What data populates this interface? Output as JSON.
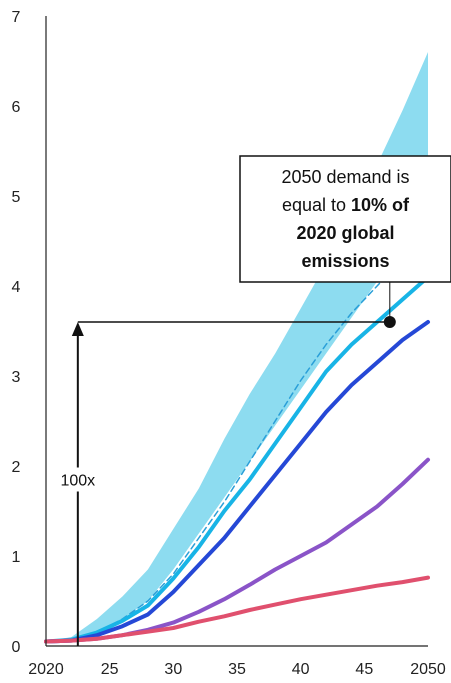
{
  "chart_data": {
    "type": "line",
    "x_range": [
      2020,
      2050
    ],
    "ylim": [
      0,
      7
    ],
    "y_ticks": [
      {
        "value": 0,
        "label": "0"
      },
      {
        "value": 1,
        "label": "1"
      },
      {
        "value": 2,
        "label": "2"
      },
      {
        "value": 3,
        "label": "3"
      },
      {
        "value": 4,
        "label": "4"
      },
      {
        "value": 5,
        "label": "5"
      },
      {
        "value": 6,
        "label": "6"
      },
      {
        "value": 7,
        "label": "7"
      }
    ],
    "x_ticks": [
      {
        "value": 2020,
        "label": "2020"
      },
      {
        "value": 2025,
        "label": "25"
      },
      {
        "value": 2030,
        "label": "30"
      },
      {
        "value": 2035,
        "label": "35"
      },
      {
        "value": 2040,
        "label": "40"
      },
      {
        "value": 2045,
        "label": "45"
      },
      {
        "value": 2050,
        "label": "2050"
      }
    ],
    "band": {
      "color": "#8ddcf0",
      "upper": [
        [
          2020,
          0.05
        ],
        [
          2022,
          0.1
        ],
        [
          2024,
          0.3
        ],
        [
          2026,
          0.55
        ],
        [
          2028,
          0.85
        ],
        [
          2030,
          1.3
        ],
        [
          2032,
          1.75
        ],
        [
          2034,
          2.3
        ],
        [
          2036,
          2.8
        ],
        [
          2038,
          3.25
        ],
        [
          2040,
          3.75
        ],
        [
          2042,
          4.25
        ],
        [
          2044,
          4.8
        ],
        [
          2046,
          5.35
        ],
        [
          2048,
          5.95
        ],
        [
          2050,
          6.6
        ]
      ],
      "lower": [
        [
          2020,
          0.05
        ],
        [
          2022,
          0.07
        ],
        [
          2024,
          0.15
        ],
        [
          2026,
          0.3
        ],
        [
          2028,
          0.5
        ],
        [
          2030,
          0.85
        ],
        [
          2032,
          1.25
        ],
        [
          2034,
          1.65
        ],
        [
          2036,
          2.05
        ],
        [
          2038,
          2.45
        ],
        [
          2040,
          2.85
        ],
        [
          2042,
          3.25
        ],
        [
          2044,
          3.65
        ],
        [
          2046,
          4.05
        ],
        [
          2048,
          4.4
        ],
        [
          2050,
          4.6
        ]
      ]
    },
    "series": [
      {
        "color": "#2a9fd8",
        "dashed": true,
        "points": [
          [
            2020,
            0.05
          ],
          [
            2022,
            0.07
          ],
          [
            2024,
            0.15
          ],
          [
            2026,
            0.3
          ],
          [
            2028,
            0.5
          ],
          [
            2030,
            0.8
          ],
          [
            2032,
            1.2
          ],
          [
            2034,
            1.6
          ],
          [
            2036,
            2.05
          ],
          [
            2038,
            2.5
          ],
          [
            2040,
            2.95
          ],
          [
            2042,
            3.35
          ],
          [
            2044,
            3.7
          ],
          [
            2046,
            4.0
          ],
          [
            2048,
            4.3
          ],
          [
            2050,
            4.4
          ]
        ]
      },
      {
        "color": "#18b4e6",
        "dashed": false,
        "points": [
          [
            2020,
            0.05
          ],
          [
            2022,
            0.07
          ],
          [
            2024,
            0.15
          ],
          [
            2026,
            0.28
          ],
          [
            2028,
            0.45
          ],
          [
            2030,
            0.75
          ],
          [
            2032,
            1.1
          ],
          [
            2034,
            1.5
          ],
          [
            2036,
            1.85
          ],
          [
            2038,
            2.25
          ],
          [
            2040,
            2.65
          ],
          [
            2042,
            3.05
          ],
          [
            2044,
            3.35
          ],
          [
            2046,
            3.6
          ],
          [
            2048,
            3.85
          ],
          [
            2050,
            4.1
          ]
        ]
      },
      {
        "color": "#2548d6",
        "dashed": false,
        "points": [
          [
            2020,
            0.05
          ],
          [
            2022,
            0.06
          ],
          [
            2024,
            0.12
          ],
          [
            2026,
            0.22
          ],
          [
            2028,
            0.35
          ],
          [
            2030,
            0.6
          ],
          [
            2032,
            0.9
          ],
          [
            2034,
            1.2
          ],
          [
            2036,
            1.55
          ],
          [
            2038,
            1.9
          ],
          [
            2040,
            2.25
          ],
          [
            2042,
            2.6
          ],
          [
            2044,
            2.9
          ],
          [
            2046,
            3.15
          ],
          [
            2048,
            3.4
          ],
          [
            2050,
            3.6
          ]
        ]
      },
      {
        "color": "#8a54c8",
        "dashed": false,
        "points": [
          [
            2020,
            0.05
          ],
          [
            2022,
            0.06
          ],
          [
            2024,
            0.08
          ],
          [
            2026,
            0.12
          ],
          [
            2028,
            0.18
          ],
          [
            2030,
            0.26
          ],
          [
            2032,
            0.38
          ],
          [
            2034,
            0.52
          ],
          [
            2036,
            0.68
          ],
          [
            2038,
            0.85
          ],
          [
            2040,
            1.0
          ],
          [
            2042,
            1.15
          ],
          [
            2044,
            1.35
          ],
          [
            2046,
            1.55
          ],
          [
            2048,
            1.8
          ],
          [
            2050,
            2.07
          ]
        ]
      },
      {
        "color": "#e0506e",
        "dashed": false,
        "points": [
          [
            2020,
            0.05
          ],
          [
            2022,
            0.06
          ],
          [
            2024,
            0.08
          ],
          [
            2026,
            0.12
          ],
          [
            2028,
            0.16
          ],
          [
            2030,
            0.2
          ],
          [
            2032,
            0.27
          ],
          [
            2034,
            0.33
          ],
          [
            2036,
            0.4
          ],
          [
            2038,
            0.46
          ],
          [
            2040,
            0.52
          ],
          [
            2042,
            0.57
          ],
          [
            2044,
            0.62
          ],
          [
            2046,
            0.67
          ],
          [
            2048,
            0.71
          ],
          [
            2050,
            0.76
          ]
        ]
      }
    ],
    "annotations": {
      "callout_lines": [
        [
          {
            "text": "2050 demand is",
            "bold": false
          }
        ],
        [
          {
            "text": "equal to ",
            "bold": false
          },
          {
            "text": "10% of",
            "bold": true
          }
        ],
        [
          {
            "text": "2020 global",
            "bold": true
          }
        ],
        [
          {
            "text": "emissions",
            "bold": true
          }
        ]
      ],
      "marker": {
        "x": 2047,
        "y": 3.6
      },
      "arrow_base": {
        "x": 2022.5,
        "y": 0.0
      },
      "multiplier_label": "100x",
      "multiplier_label_y": 1.85
    }
  }
}
